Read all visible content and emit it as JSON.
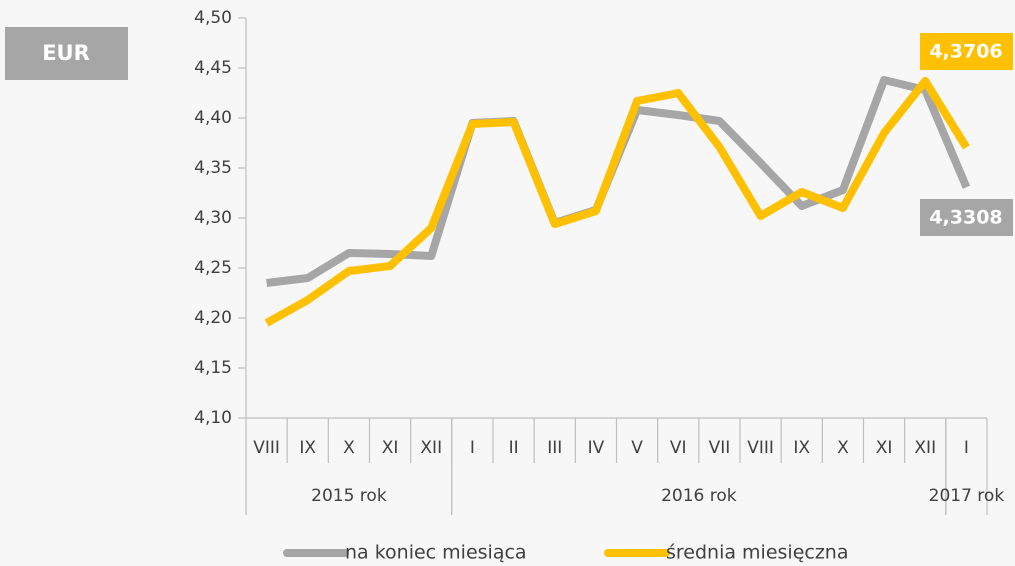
{
  "chart_data": {
    "type": "line",
    "badge": "EUR",
    "categories": [
      "VIII",
      "IX",
      "X",
      "XI",
      "XII",
      "I",
      "II",
      "III",
      "IV",
      "V",
      "VI",
      "VII",
      "VIII",
      "IX",
      "X",
      "XI",
      "XII",
      "I"
    ],
    "groups": [
      {
        "label": "2015 rok",
        "count": 5
      },
      {
        "label": "2016 rok",
        "count": 12
      },
      {
        "label": "2017 rok",
        "count": 1
      }
    ],
    "series": [
      {
        "name": "na koniec miesiąca",
        "color": "#a6a6a6",
        "values": [
          4.235,
          4.24,
          4.265,
          4.264,
          4.262,
          4.395,
          4.397,
          4.295,
          4.308,
          4.408,
          4.403,
          4.397,
          4.355,
          4.312,
          4.328,
          4.438,
          4.428,
          4.3308
        ],
        "value_labels": [
          null,
          null,
          null,
          null,
          null,
          null,
          null,
          null,
          null,
          null,
          null,
          null,
          null,
          null,
          null,
          null,
          null,
          "4,3308"
        ]
      },
      {
        "name": "średnia miesięczna",
        "color": "#ffc000",
        "values": [
          4.195,
          4.218,
          4.247,
          4.252,
          4.29,
          4.394,
          4.396,
          4.294,
          4.307,
          4.417,
          4.425,
          4.371,
          4.302,
          4.326,
          4.31,
          4.385,
          4.437,
          4.3706
        ],
        "value_labels": [
          null,
          null,
          null,
          null,
          null,
          null,
          null,
          null,
          null,
          null,
          null,
          null,
          null,
          null,
          null,
          null,
          null,
          "4,3706"
        ]
      }
    ],
    "ylim": [
      4.1,
      4.5
    ],
    "yticks": [
      {
        "value": 4.1,
        "label": "4,10"
      },
      {
        "value": 4.15,
        "label": "4,15"
      },
      {
        "value": 4.2,
        "label": "4,20"
      },
      {
        "value": 4.25,
        "label": "4,25"
      },
      {
        "value": 4.3,
        "label": "4,30"
      },
      {
        "value": 4.35,
        "label": "4,35"
      },
      {
        "value": 4.4,
        "label": "4,40"
      },
      {
        "value": 4.45,
        "label": "4,45"
      },
      {
        "value": 4.5,
        "label": "4,50"
      }
    ],
    "grid": false
  }
}
